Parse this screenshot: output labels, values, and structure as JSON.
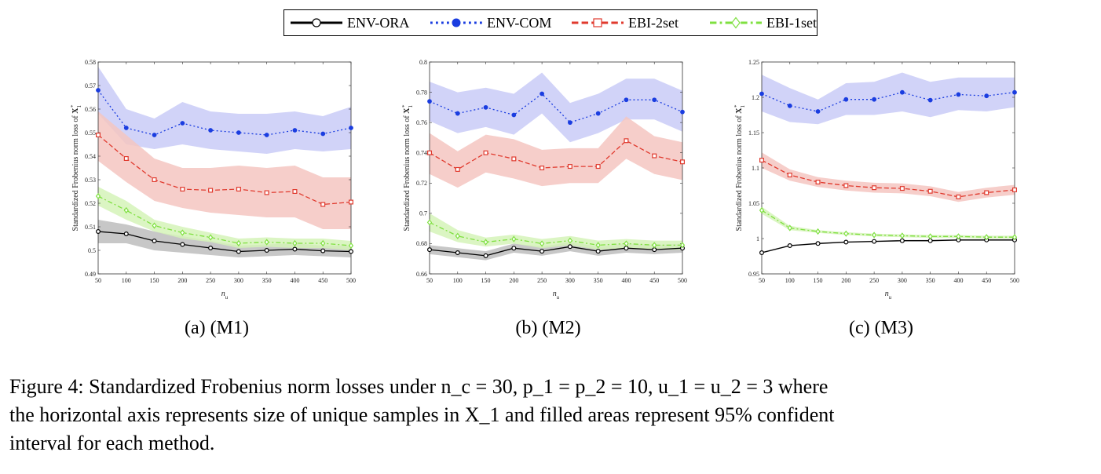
{
  "legend": [
    {
      "name": "ENV-ORA",
      "color": "#000000",
      "dash": "",
      "marker": "circle-open"
    },
    {
      "name": "ENV-COM",
      "color": "#1a3de0",
      "dash": "2,3",
      "marker": "circle-filled"
    },
    {
      "name": "EBI-2set",
      "color": "#e03a2e",
      "dash": "6,3",
      "marker": "square-open"
    },
    {
      "name": "EBI-1set",
      "color": "#7fe040",
      "dash": "6,3,2,3",
      "marker": "diamond-open"
    }
  ],
  "chart_data": [
    {
      "type": "line",
      "caption": "(a) (M1)",
      "xlabel": "n_u",
      "ylabel": "Standardized Frobenius norm loss of X_1^*",
      "x": [
        50,
        100,
        150,
        200,
        250,
        300,
        350,
        400,
        450,
        500
      ],
      "ylim": [
        0.49,
        0.58
      ],
      "yticks": [
        "0.49",
        "0.5",
        "0.51",
        "0.52",
        "0.53",
        "0.54",
        "0.55",
        "0.56",
        "0.57",
        "0.58"
      ],
      "series": [
        {
          "name": "ENV-ORA",
          "values": [
            0.508,
            0.507,
            0.504,
            0.5025,
            0.501,
            0.4995,
            0.5,
            0.5005,
            0.4998,
            0.4995
          ],
          "lower": [
            0.503,
            0.503,
            0.5,
            0.499,
            0.498,
            0.497,
            0.4975,
            0.498,
            0.4975,
            0.497
          ],
          "upper": [
            0.513,
            0.511,
            0.508,
            0.506,
            0.504,
            0.502,
            0.5025,
            0.503,
            0.502,
            0.502
          ]
        },
        {
          "name": "ENV-COM",
          "values": [
            0.568,
            0.552,
            0.549,
            0.554,
            0.551,
            0.55,
            0.549,
            0.551,
            0.5495,
            0.552
          ],
          "lower": [
            0.558,
            0.545,
            0.543,
            0.545,
            0.543,
            0.542,
            0.541,
            0.543,
            0.542,
            0.543
          ],
          "upper": [
            0.578,
            0.56,
            0.556,
            0.563,
            0.559,
            0.558,
            0.558,
            0.559,
            0.557,
            0.561
          ]
        },
        {
          "name": "EBI-2set",
          "values": [
            0.549,
            0.539,
            0.53,
            0.526,
            0.5255,
            0.526,
            0.5245,
            0.525,
            0.5195,
            0.5205
          ],
          "lower": [
            0.538,
            0.529,
            0.521,
            0.518,
            0.516,
            0.515,
            0.514,
            0.514,
            0.509,
            0.509
          ],
          "upper": [
            0.559,
            0.549,
            0.539,
            0.535,
            0.535,
            0.536,
            0.535,
            0.536,
            0.531,
            0.531
          ]
        },
        {
          "name": "EBI-1set",
          "values": [
            0.523,
            0.517,
            0.5105,
            0.5075,
            0.5055,
            0.503,
            0.5035,
            0.503,
            0.503,
            0.502
          ],
          "lower": [
            0.519,
            0.513,
            0.508,
            0.505,
            0.5035,
            0.501,
            0.5015,
            0.501,
            0.501,
            0.5
          ],
          "upper": [
            0.527,
            0.521,
            0.513,
            0.51,
            0.5075,
            0.505,
            0.5055,
            0.505,
            0.505,
            0.504
          ]
        }
      ]
    },
    {
      "type": "line",
      "caption": "(b) (M2)",
      "xlabel": "n_u",
      "ylabel": "Standardized Frobenius norm loss of X_1^*",
      "x": [
        50,
        100,
        150,
        200,
        250,
        300,
        350,
        400,
        450,
        500
      ],
      "ylim": [
        0.66,
        0.8
      ],
      "yticks": [
        "0.66",
        "0.68",
        "0.7",
        "0.72",
        "0.74",
        "0.76",
        "0.78",
        "0.8"
      ],
      "series": [
        {
          "name": "ENV-ORA",
          "values": [
            0.676,
            0.674,
            0.672,
            0.677,
            0.675,
            0.678,
            0.675,
            0.677,
            0.676,
            0.677
          ],
          "lower": [
            0.673,
            0.671,
            0.669,
            0.674,
            0.672,
            0.675,
            0.672,
            0.674,
            0.673,
            0.674
          ],
          "upper": [
            0.679,
            0.677,
            0.675,
            0.68,
            0.678,
            0.681,
            0.678,
            0.68,
            0.679,
            0.68
          ]
        },
        {
          "name": "ENV-COM",
          "values": [
            0.774,
            0.766,
            0.77,
            0.765,
            0.779,
            0.76,
            0.766,
            0.775,
            0.775,
            0.767
          ],
          "lower": [
            0.761,
            0.753,
            0.757,
            0.752,
            0.766,
            0.747,
            0.753,
            0.762,
            0.762,
            0.754
          ],
          "upper": [
            0.787,
            0.78,
            0.783,
            0.779,
            0.793,
            0.773,
            0.779,
            0.789,
            0.789,
            0.781
          ]
        },
        {
          "name": "EBI-2set",
          "values": [
            0.74,
            0.729,
            0.74,
            0.736,
            0.73,
            0.731,
            0.731,
            0.748,
            0.738,
            0.734
          ],
          "lower": [
            0.726,
            0.717,
            0.727,
            0.723,
            0.718,
            0.72,
            0.72,
            0.736,
            0.726,
            0.722
          ],
          "upper": [
            0.753,
            0.741,
            0.752,
            0.749,
            0.742,
            0.743,
            0.743,
            0.764,
            0.751,
            0.747
          ]
        },
        {
          "name": "EBI-1set",
          "values": [
            0.694,
            0.685,
            0.681,
            0.683,
            0.68,
            0.682,
            0.679,
            0.68,
            0.679,
            0.679
          ],
          "lower": [
            0.688,
            0.681,
            0.678,
            0.68,
            0.677,
            0.679,
            0.676,
            0.677,
            0.676,
            0.676
          ],
          "upper": [
            0.7,
            0.689,
            0.684,
            0.686,
            0.683,
            0.685,
            0.682,
            0.683,
            0.682,
            0.682
          ]
        }
      ]
    },
    {
      "type": "line",
      "caption": "(c) (M3)",
      "xlabel": "n_u",
      "ylabel": "Standardized Frobenius norm loss of X_1^*",
      "x": [
        50,
        100,
        150,
        200,
        250,
        300,
        350,
        400,
        450,
        500
      ],
      "ylim": [
        0.95,
        1.25
      ],
      "yticks": [
        "0.95",
        "1",
        "1.05",
        "1.1",
        "1.15",
        "1.2",
        "1.25"
      ],
      "series": [
        {
          "name": "ENV-ORA",
          "values": [
            0.98,
            0.99,
            0.993,
            0.995,
            0.996,
            0.997,
            0.997,
            0.998,
            0.998,
            0.998
          ],
          "lower": [
            0.979,
            0.989,
            0.992,
            0.994,
            0.995,
            0.996,
            0.996,
            0.997,
            0.997,
            0.997
          ],
          "upper": [
            0.981,
            0.991,
            0.994,
            0.996,
            0.997,
            0.998,
            0.998,
            0.999,
            0.999,
            0.999
          ]
        },
        {
          "name": "ENV-COM",
          "values": [
            1.205,
            1.188,
            1.18,
            1.197,
            1.197,
            1.207,
            1.196,
            1.204,
            1.202,
            1.207
          ],
          "lower": [
            1.18,
            1.165,
            1.162,
            1.175,
            1.175,
            1.18,
            1.172,
            1.182,
            1.18,
            1.186
          ],
          "upper": [
            1.232,
            1.213,
            1.197,
            1.22,
            1.222,
            1.235,
            1.222,
            1.228,
            1.228,
            1.228
          ]
        },
        {
          "name": "EBI-2set",
          "values": [
            1.111,
            1.09,
            1.08,
            1.075,
            1.072,
            1.071,
            1.067,
            1.059,
            1.065,
            1.069
          ],
          "lower": [
            1.1,
            1.082,
            1.073,
            1.068,
            1.065,
            1.064,
            1.06,
            1.052,
            1.058,
            1.062
          ],
          "upper": [
            1.122,
            1.098,
            1.087,
            1.082,
            1.079,
            1.078,
            1.074,
            1.066,
            1.072,
            1.076
          ]
        },
        {
          "name": "EBI-1set",
          "values": [
            1.04,
            1.015,
            1.01,
            1.007,
            1.005,
            1.004,
            1.003,
            1.003,
            1.002,
            1.002
          ],
          "lower": [
            1.035,
            1.012,
            1.008,
            1.005,
            1.003,
            1.002,
            1.001,
            1.001,
            1.0,
            1.0
          ],
          "upper": [
            1.045,
            1.018,
            1.012,
            1.009,
            1.007,
            1.006,
            1.005,
            1.005,
            1.004,
            1.004
          ]
        }
      ]
    }
  ],
  "figure_caption": {
    "line1": "Figure 4: Standardized Frobenius norm losses under n_c = 30, p_1 = p_2 = 10, u_1 = u_2 = 3 where",
    "line2": "the horizontal axis represents size of unique samples in X_1 and filled areas represent 95% confident",
    "line3": "interval for each method."
  },
  "band_colors": {
    "ENV-ORA": "#bdbdbd",
    "ENV-COM": "#c9cbf7",
    "EBI-2set": "#f5c5c1",
    "EBI-1set": "#d5f3b8"
  }
}
